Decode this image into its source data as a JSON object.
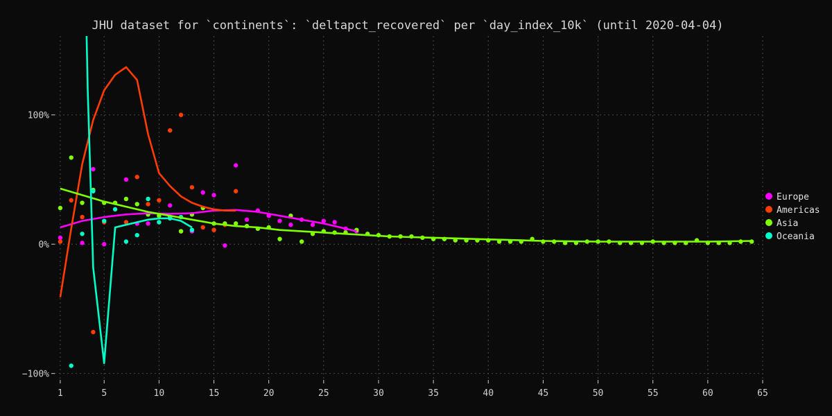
{
  "chart_data": {
    "type": "scatter",
    "title": "JHU dataset for `continents`: `deltapct_recovered` per `day_index_10k` (until 2020-04-04)",
    "xlabel": "",
    "ylabel": "",
    "xlim": [
      0.5,
      65
    ],
    "ylim": [
      -105,
      161
    ],
    "x_ticks": [
      1,
      5,
      10,
      15,
      20,
      25,
      30,
      35,
      40,
      45,
      50,
      55,
      60,
      65
    ],
    "y_ticks": [
      -100,
      0,
      100
    ],
    "y_tick_labels": [
      "−100%",
      "0%",
      "100%"
    ],
    "grid": true,
    "legend_position": "right",
    "background_color": "#0b0b0b",
    "series": [
      {
        "name": "Europe",
        "color": "#ff00ff",
        "points": [
          [
            1,
            5
          ],
          [
            3,
            1
          ],
          [
            4,
            58
          ],
          [
            5,
            0
          ],
          [
            7,
            50
          ],
          [
            8,
            16
          ],
          [
            9,
            16
          ],
          [
            11,
            30
          ],
          [
            12,
            10
          ],
          [
            13,
            10
          ],
          [
            14,
            40
          ],
          [
            15,
            38
          ],
          [
            16,
            -1
          ],
          [
            17,
            61
          ],
          [
            18,
            19
          ],
          [
            19,
            26
          ],
          [
            20,
            22
          ],
          [
            21,
            18
          ],
          [
            22,
            15
          ],
          [
            23,
            19
          ],
          [
            24,
            15
          ],
          [
            25,
            18
          ],
          [
            26,
            17
          ],
          [
            27,
            12
          ],
          [
            28,
            10
          ]
        ],
        "trend": [
          [
            1,
            13
          ],
          [
            3,
            18
          ],
          [
            5,
            21
          ],
          [
            7,
            23
          ],
          [
            9,
            24
          ],
          [
            11,
            23.5
          ],
          [
            13,
            24
          ],
          [
            15,
            26
          ],
          [
            17,
            26.5
          ],
          [
            19,
            25
          ],
          [
            21,
            22
          ],
          [
            23,
            19
          ],
          [
            25,
            16
          ],
          [
            27,
            12
          ],
          [
            28,
            10
          ]
        ]
      },
      {
        "name": "Americas",
        "color": "#ff3d00",
        "points": [
          [
            1,
            2
          ],
          [
            2,
            34
          ],
          [
            3,
            21
          ],
          [
            4,
            -68
          ],
          [
            5,
            17
          ],
          [
            7,
            17
          ],
          [
            8,
            52
          ],
          [
            9,
            31
          ],
          [
            10,
            34
          ],
          [
            11,
            88
          ],
          [
            12,
            100
          ],
          [
            13,
            44
          ],
          [
            14,
            13
          ],
          [
            15,
            11
          ],
          [
            16,
            15
          ],
          [
            17,
            41
          ]
        ],
        "trend": [
          [
            1,
            -41
          ],
          [
            2,
            12
          ],
          [
            3,
            62
          ],
          [
            4,
            96
          ],
          [
            5,
            119
          ],
          [
            6,
            131
          ],
          [
            7,
            137
          ],
          [
            8,
            127
          ],
          [
            9,
            85
          ],
          [
            10,
            55
          ],
          [
            11,
            45
          ],
          [
            12,
            37
          ],
          [
            13,
            32
          ],
          [
            14,
            29
          ],
          [
            15,
            27
          ],
          [
            16,
            26
          ],
          [
            17,
            26
          ]
        ]
      },
      {
        "name": "Asia",
        "color": "#7fff00",
        "points": [
          [
            1,
            28
          ],
          [
            2,
            67
          ],
          [
            3,
            32
          ],
          [
            4,
            42
          ],
          [
            5,
            32
          ],
          [
            6,
            32
          ],
          [
            7,
            35
          ],
          [
            8,
            31
          ],
          [
            9,
            23
          ],
          [
            10,
            22
          ],
          [
            11,
            21
          ],
          [
            12,
            10
          ],
          [
            13,
            23
          ],
          [
            14,
            28
          ],
          [
            15,
            16
          ],
          [
            16,
            16
          ],
          [
            17,
            16
          ],
          [
            18,
            14
          ],
          [
            19,
            12
          ],
          [
            20,
            13
          ],
          [
            21,
            4
          ],
          [
            22,
            22
          ],
          [
            23,
            2
          ],
          [
            24,
            8
          ],
          [
            25,
            10
          ],
          [
            26,
            9
          ],
          [
            27,
            9
          ],
          [
            28,
            11
          ],
          [
            29,
            8
          ],
          [
            30,
            7
          ],
          [
            31,
            6
          ],
          [
            32,
            6
          ],
          [
            33,
            6
          ],
          [
            34,
            5
          ],
          [
            35,
            4
          ],
          [
            36,
            4
          ],
          [
            37,
            3
          ],
          [
            38,
            3
          ],
          [
            39,
            3
          ],
          [
            40,
            3
          ],
          [
            41,
            2
          ],
          [
            42,
            2
          ],
          [
            43,
            2
          ],
          [
            44,
            4
          ],
          [
            45,
            2
          ],
          [
            46,
            2
          ],
          [
            47,
            1
          ],
          [
            48,
            1
          ],
          [
            49,
            2
          ],
          [
            50,
            2
          ],
          [
            51,
            2
          ],
          [
            52,
            1
          ],
          [
            53,
            1
          ],
          [
            54,
            1
          ],
          [
            55,
            2
          ],
          [
            56,
            1
          ],
          [
            57,
            1
          ],
          [
            58,
            1
          ],
          [
            59,
            3
          ],
          [
            60,
            1
          ],
          [
            61,
            1
          ],
          [
            62,
            1
          ],
          [
            63,
            2
          ],
          [
            64,
            2
          ]
        ],
        "trend": [
          [
            1,
            43
          ],
          [
            3,
            38
          ],
          [
            5,
            33
          ],
          [
            7,
            29
          ],
          [
            9,
            25
          ],
          [
            11,
            22
          ],
          [
            13,
            19
          ],
          [
            15,
            16
          ],
          [
            17,
            14
          ],
          [
            19,
            13
          ],
          [
            21,
            11
          ],
          [
            23,
            10
          ],
          [
            25,
            9
          ],
          [
            27,
            8
          ],
          [
            29,
            7
          ],
          [
            31,
            6
          ],
          [
            33,
            5.5
          ],
          [
            35,
            5
          ],
          [
            37,
            4.5
          ],
          [
            39,
            4
          ],
          [
            41,
            3.5
          ],
          [
            43,
            3
          ],
          [
            45,
            2.5
          ],
          [
            47,
            2.3
          ],
          [
            50,
            2
          ],
          [
            55,
            2
          ],
          [
            60,
            2
          ],
          [
            64,
            2.5
          ]
        ]
      },
      {
        "name": "Oceania",
        "color": "#00ffc8",
        "points": [
          [
            2,
            -94
          ],
          [
            3,
            8
          ],
          [
            4,
            41
          ],
          [
            5,
            18
          ],
          [
            6,
            27
          ],
          [
            7,
            2
          ],
          [
            8,
            7
          ],
          [
            9,
            35
          ],
          [
            10,
            17
          ],
          [
            11,
            20
          ],
          [
            12,
            21
          ],
          [
            13,
            11
          ]
        ],
        "trend": [
          [
            3.4,
            161
          ],
          [
            3.5,
            120
          ],
          [
            4,
            -18
          ],
          [
            5,
            -92
          ],
          [
            6,
            13
          ],
          [
            7,
            15
          ],
          [
            8,
            17
          ],
          [
            9,
            19
          ],
          [
            10,
            20
          ],
          [
            11,
            20
          ],
          [
            12,
            18
          ],
          [
            13,
            13
          ]
        ]
      }
    ]
  }
}
